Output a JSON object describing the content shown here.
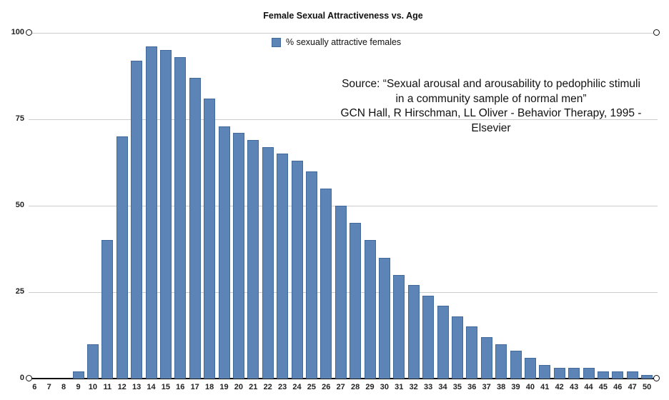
{
  "chart_data": {
    "type": "bar",
    "title": "Female Sexual Attractiveness vs. Age",
    "legend": "% sexually attractive females",
    "legend_position": "top-center",
    "grid": "horizontal",
    "categories": [
      "6",
      "7",
      "8",
      "9",
      "10",
      "11",
      "12",
      "13",
      "14",
      "15",
      "16",
      "17",
      "18",
      "19",
      "20",
      "21",
      "22",
      "23",
      "24",
      "25",
      "26",
      "27",
      "28",
      "29",
      "30",
      "31",
      "32",
      "33",
      "34",
      "35",
      "36",
      "37",
      "38",
      "39",
      "40",
      "41",
      "42",
      "43",
      "44",
      "45",
      "46",
      "47",
      "50"
    ],
    "values": [
      0,
      0,
      0,
      2,
      10,
      40,
      70,
      92,
      96,
      95,
      93,
      87,
      81,
      73,
      71,
      69,
      67,
      65,
      63,
      60,
      55,
      50,
      45,
      40,
      35,
      30,
      27,
      24,
      21,
      18,
      15,
      12,
      10,
      8,
      6,
      4,
      3,
      3,
      3,
      2,
      2,
      2,
      1
    ],
    "xlabel": "",
    "ylabel": "",
    "y_ticks": [
      100,
      75,
      50,
      25,
      0
    ],
    "ylim": [
      0,
      100
    ],
    "bar_color": "#5d84b7",
    "bar_border_color": "#41699b",
    "gridline_color": "#cccccc",
    "axis_line_color": "#111111",
    "label_color": "#222222",
    "source_lines": [
      "Source: “Sexual arousal and arousability to pedophilic stimuli",
      "in a community sample of normal men”",
      "GCN Hall, R Hirschman, LL Oliver - Behavior Therapy, 1995 - Elsevier"
    ]
  }
}
